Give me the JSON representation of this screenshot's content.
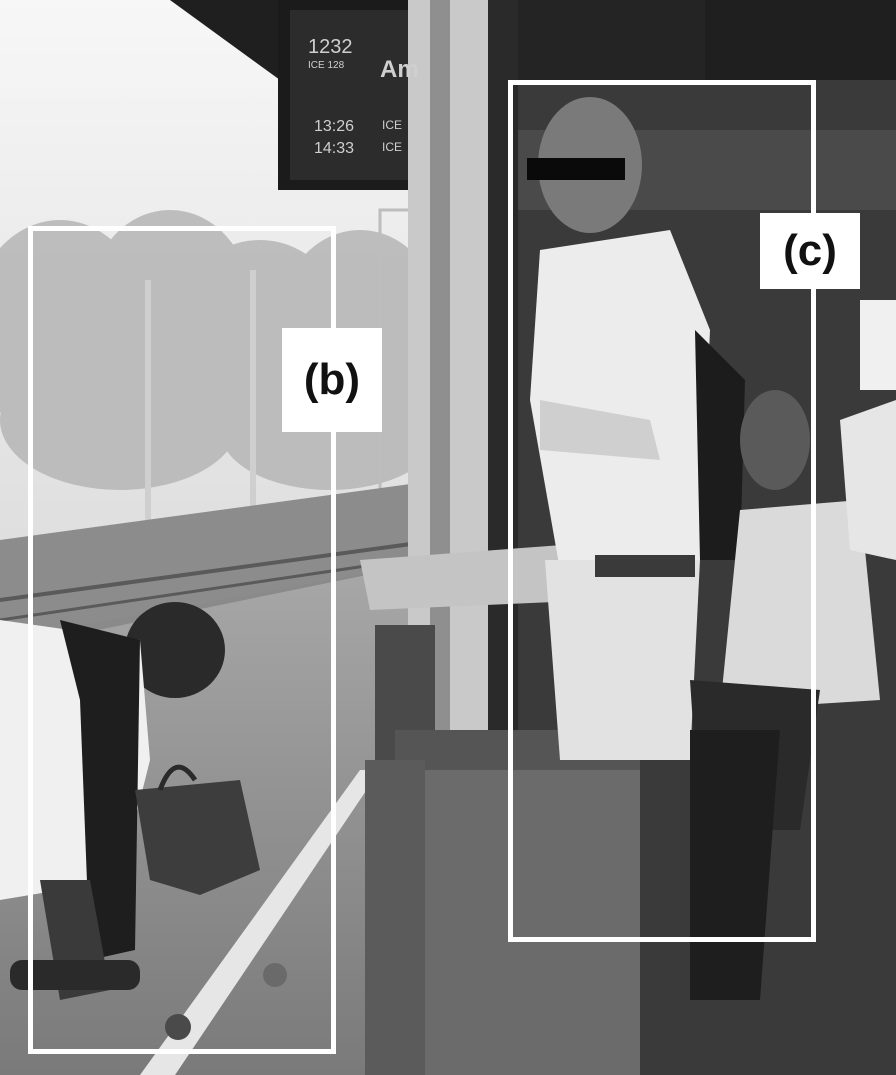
{
  "scene": {
    "description_colors": {
      "sky": "#f2f2f2",
      "roof": "#1a1a1a",
      "platform": "#9a9a9a",
      "frame": "#ffffff"
    }
  },
  "departure_board": {
    "train_number": "1232",
    "train_type": "ICE 128",
    "destination_fragment": "Am",
    "time_1": "13:26",
    "time_2": "14:33",
    "type_1": "ICE",
    "type_2": "ICE"
  },
  "annotations": [
    {
      "id": "b",
      "label": "(b)"
    },
    {
      "id": "c",
      "label": "(c)"
    }
  ]
}
